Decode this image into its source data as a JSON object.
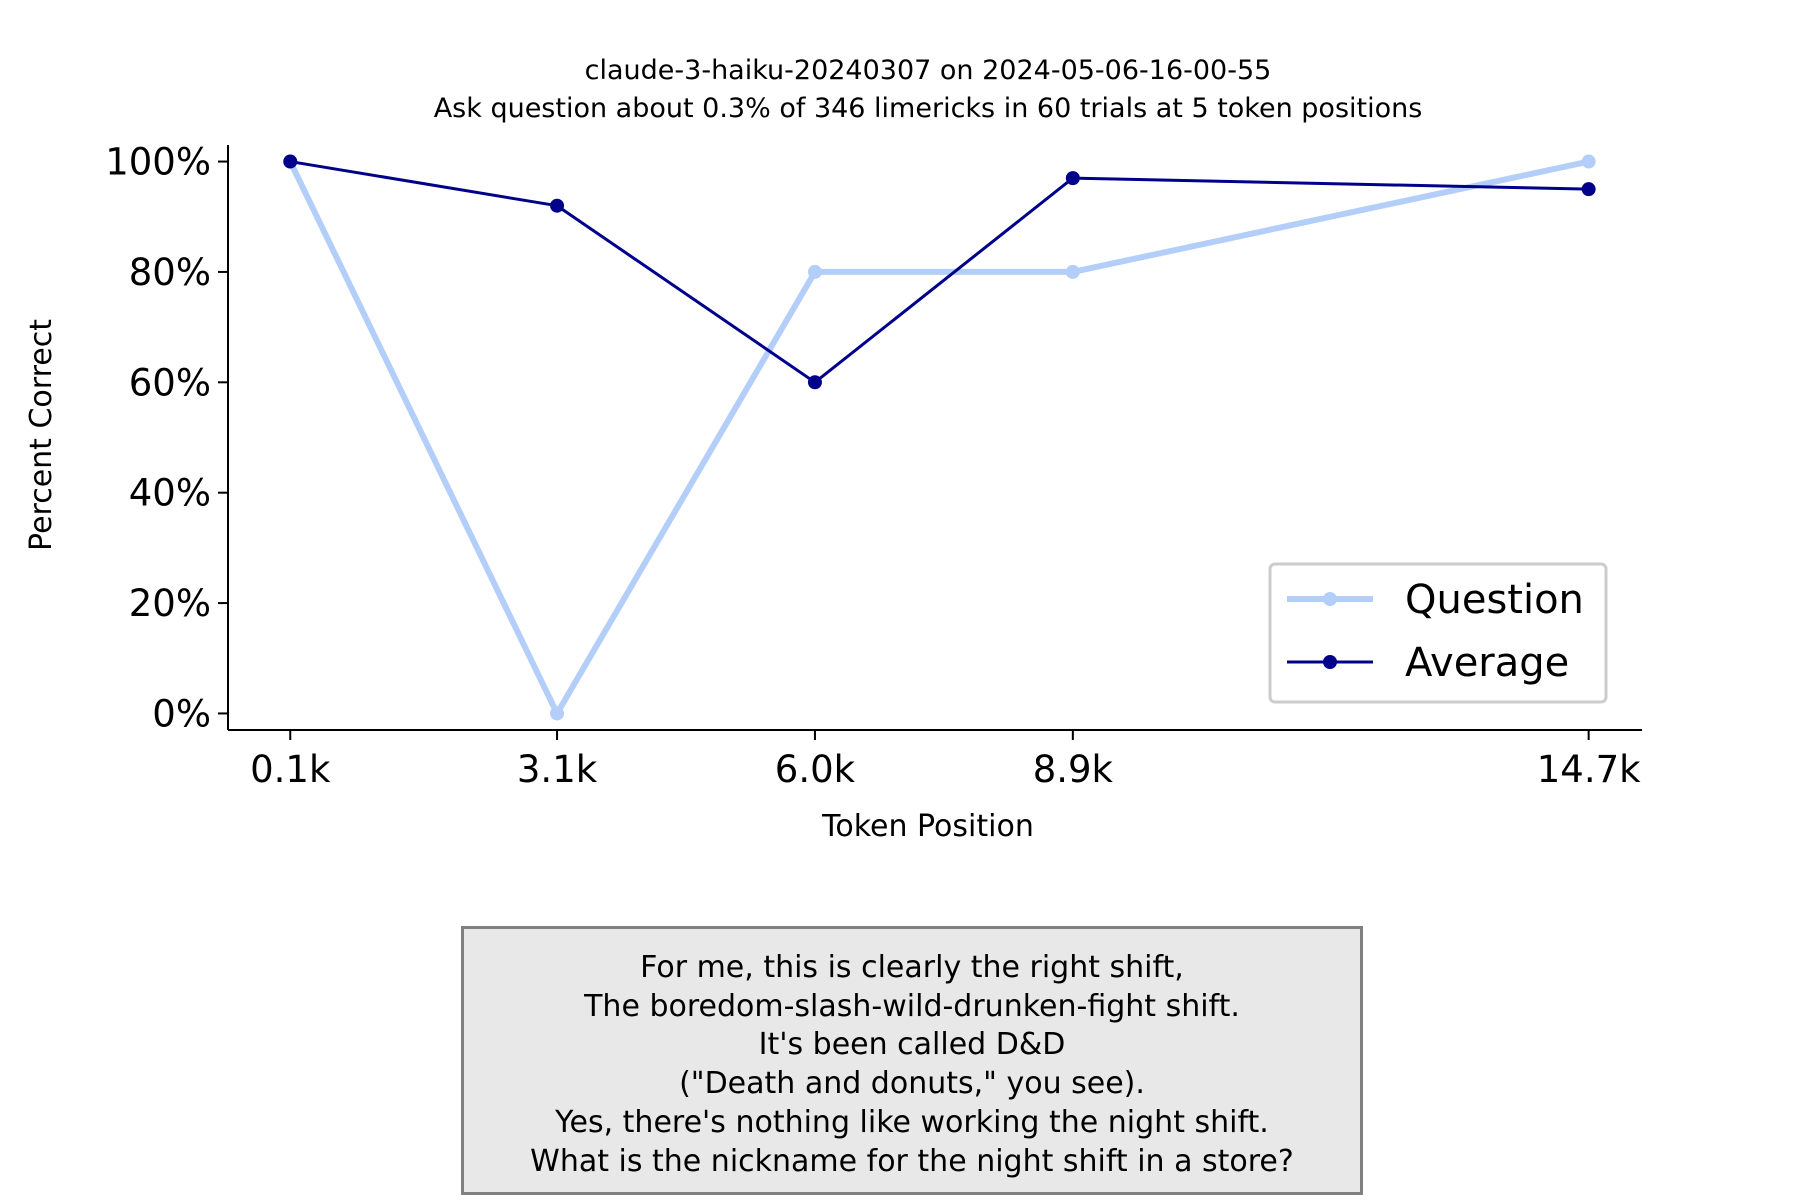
{
  "chart_data": {
    "type": "line",
    "title": "claude-3-haiku-20240307 on 2024-05-06-16-00-55",
    "subtitle": "Ask question about 0.3% of 346 limericks in 60 trials at 5 token positions",
    "xlabel": "Token Position",
    "ylabel": "Percent Correct",
    "categories": [
      "0.1k",
      "3.1k",
      "6.0k",
      "8.9k",
      "14.7k"
    ],
    "x": [
      0.1,
      3.1,
      6.0,
      8.9,
      14.7
    ],
    "xlim": [
      -0.6,
      15.3
    ],
    "ylim": [
      -3,
      103
    ],
    "yticks": [
      0,
      20,
      40,
      60,
      80,
      100
    ],
    "ytick_labels": [
      "0%",
      "20%",
      "40%",
      "60%",
      "80%",
      "100%"
    ],
    "grid": false,
    "legend_placement": "lower-right",
    "series": [
      {
        "name": "Question",
        "values": [
          100,
          0,
          80,
          80,
          100
        ],
        "color": "#b3cff9"
      },
      {
        "name": "Average",
        "values": [
          100,
          92,
          60,
          97,
          95
        ],
        "color": "#00008b"
      }
    ]
  },
  "note": {
    "lines": [
      "For me, this is clearly the right shift,",
      "The boredom-slash-wild-drunken-fight shift.",
      "It's been called D&D",
      "(\"Death and donuts,\" you see).",
      "Yes, there's nothing like working the night shift.",
      "What is the nickname for the night shift in a store?"
    ]
  }
}
